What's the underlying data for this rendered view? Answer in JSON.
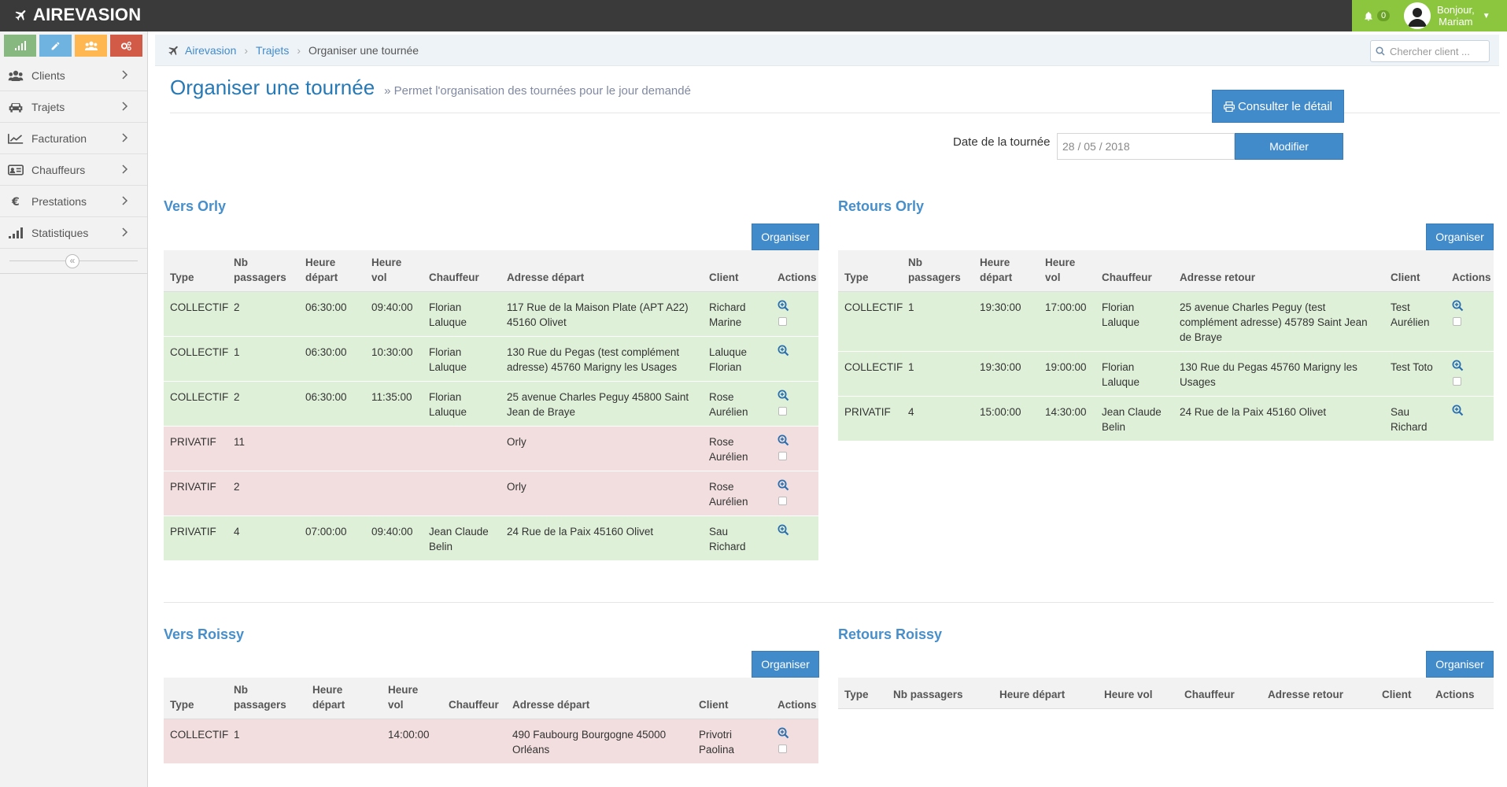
{
  "app": {
    "brand": "AIREVASION",
    "notif_count": "0",
    "user_greeting": "Bonjour,",
    "user_name": "Mariam"
  },
  "colors": {
    "accent": "#428bca",
    "success_row": "#dff0d8",
    "danger_row": "#f2dede",
    "user_green": "#8cc63f"
  },
  "shortcuts": [
    {
      "icon": "signal-icon",
      "color": "#87b87f"
    },
    {
      "icon": "pencil-icon",
      "color": "#6fb3e0"
    },
    {
      "icon": "users-icon",
      "color": "#ffb752"
    },
    {
      "icon": "cogs-icon",
      "color": "#d15b47"
    }
  ],
  "sidebar": {
    "items": [
      {
        "label": "Clients",
        "icon": "users-icon"
      },
      {
        "label": "Trajets",
        "icon": "car-icon"
      },
      {
        "label": "Facturation",
        "icon": "chart-line-icon"
      },
      {
        "label": "Chauffeurs",
        "icon": "id-card-icon"
      },
      {
        "label": "Prestations",
        "icon": "euro-icon"
      },
      {
        "label": "Statistiques",
        "icon": "signal-icon"
      }
    ]
  },
  "breadcrumb": {
    "home": "Airevasion",
    "section": "Trajets",
    "current": "Organiser une tournée"
  },
  "search": {
    "placeholder": "Chercher client ..."
  },
  "header": {
    "title": "Organiser une tournée",
    "subtitle": "» Permet l'organisation des tournées pour le jour demandé"
  },
  "toolbar": {
    "detail_label": "Consulter le détail",
    "date_label": "Date de la tournée",
    "date_value": "28 / 05 / 2018",
    "modify_label": "Modifier"
  },
  "organize_label": "Organiser",
  "vers_orly": {
    "title": "Vers Orly",
    "headers": [
      "Type",
      "Nb passagers",
      "Heure départ",
      "Heure vol",
      "Chauffeur",
      "Adresse départ",
      "Client",
      "Actions"
    ],
    "rows": [
      {
        "status": "ok",
        "cells": [
          "COLLECTIF",
          "2",
          "06:30:00",
          "09:40:00",
          "Florian Laluque",
          "117 Rue de la Maison Plate (APT A22) 45160 Olivet",
          "Richard Marine"
        ],
        "check": true
      },
      {
        "status": "ok",
        "cells": [
          "COLLECTIF",
          "1",
          "06:30:00",
          "10:30:00",
          "Florian Laluque",
          "130 Rue du Pegas (test complément adresse) 45760 Marigny les Usages",
          "Laluque Florian"
        ],
        "check": false
      },
      {
        "status": "ok",
        "cells": [
          "COLLECTIF",
          "2",
          "06:30:00",
          "11:35:00",
          "Florian Laluque",
          "25 avenue Charles Peguy 45800 Saint Jean de Braye",
          "Rose Aurélien"
        ],
        "check": true
      },
      {
        "status": "ko",
        "cells": [
          "PRIVATIF",
          "11",
          "",
          "",
          "",
          "Orly",
          "Rose Aurélien"
        ],
        "check": true
      },
      {
        "status": "ko",
        "cells": [
          "PRIVATIF",
          "2",
          "",
          "",
          "",
          "Orly",
          "Rose Aurélien"
        ],
        "check": true
      },
      {
        "status": "ok",
        "cells": [
          "PRIVATIF",
          "4",
          "07:00:00",
          "09:40:00",
          "Jean Claude Belin",
          "24 Rue de la Paix 45160 Olivet",
          "Sau Richard"
        ],
        "check": false
      }
    ]
  },
  "retours_orly": {
    "title": "Retours Orly",
    "headers": [
      "Type",
      "Nb passagers",
      "Heure départ",
      "Heure vol",
      "Chauffeur",
      "Adresse retour",
      "Client",
      "Actions"
    ],
    "rows": [
      {
        "status": "ok",
        "cells": [
          "COLLECTIF",
          "1",
          "19:30:00",
          "17:00:00",
          "Florian Laluque",
          "25 avenue Charles Peguy (test complément adresse) 45789 Saint Jean de Braye",
          "Test Aurélien"
        ],
        "check": true
      },
      {
        "status": "ok",
        "cells": [
          "COLLECTIF",
          "1",
          "19:30:00",
          "19:00:00",
          "Florian Laluque",
          "130 Rue du Pegas 45760 Marigny les Usages",
          "Test Toto"
        ],
        "check": true
      },
      {
        "status": "ok",
        "cells": [
          "PRIVATIF",
          "4",
          "15:00:00",
          "14:30:00",
          "Jean Claude Belin",
          "24 Rue de la Paix 45160 Olivet",
          "Sau Richard"
        ],
        "check": false
      }
    ]
  },
  "vers_roissy": {
    "title": "Vers Roissy",
    "headers": [
      "Type",
      "Nb passagers",
      "Heure départ",
      "Heure vol",
      "Chauffeur",
      "Adresse départ",
      "Client",
      "Actions"
    ],
    "rows": [
      {
        "status": "ko",
        "cells": [
          "COLLECTIF",
          "1",
          "",
          "14:00:00",
          "",
          "490 Faubourg Bourgogne 45000 Orléans",
          "Privotri Paolina"
        ],
        "check": true
      }
    ]
  },
  "retours_roissy": {
    "title": "Retours Roissy",
    "headers": [
      "Type",
      "Nb passagers",
      "Heure départ",
      "Heure vol",
      "Chauffeur",
      "Adresse retour",
      "Client",
      "Actions"
    ],
    "rows": []
  }
}
